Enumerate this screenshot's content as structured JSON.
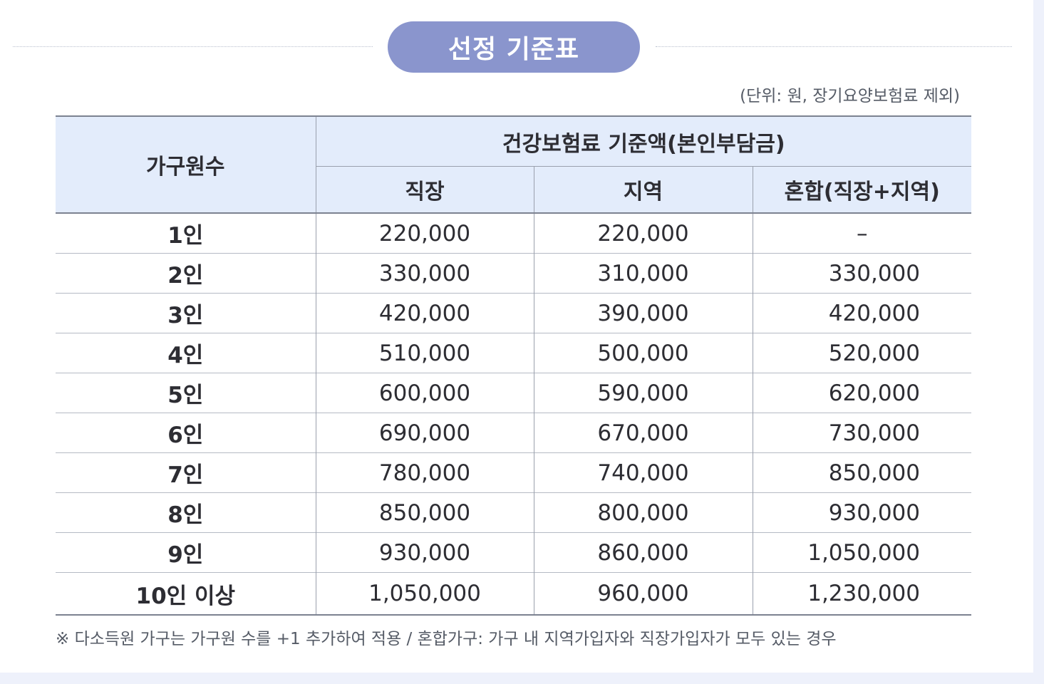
{
  "title": "선정 기준표",
  "unit_note": "(단위: 원, 장기요양보험료 제외)",
  "table": {
    "row_header": "가구원수",
    "group_header": "건강보험료 기준액(본인부담금)",
    "columns": [
      "직장",
      "지역",
      "혼합(직장+지역)"
    ],
    "rows": [
      {
        "label": "1인",
        "values": [
          "220,000",
          "220,000",
          "–"
        ]
      },
      {
        "label": "2인",
        "values": [
          "330,000",
          "310,000",
          "330,000"
        ]
      },
      {
        "label": "3인",
        "values": [
          "420,000",
          "390,000",
          "420,000"
        ]
      },
      {
        "label": "4인",
        "values": [
          "510,000",
          "500,000",
          "520,000"
        ]
      },
      {
        "label": "5인",
        "values": [
          "600,000",
          "590,000",
          "620,000"
        ]
      },
      {
        "label": "6인",
        "values": [
          "690,000",
          "670,000",
          "730,000"
        ]
      },
      {
        "label": "7인",
        "values": [
          "780,000",
          "740,000",
          "850,000"
        ]
      },
      {
        "label": "8인",
        "values": [
          "850,000",
          "800,000",
          "930,000"
        ]
      },
      {
        "label": "9인",
        "values": [
          "930,000",
          "860,000",
          "1,050,000"
        ]
      },
      {
        "label": "10인 이상",
        "values": [
          "1,050,000",
          "960,000",
          "1,230,000"
        ]
      }
    ]
  },
  "footnote": "※ 다소득원 가구는 가구원 수를 +1 추가하여 적용 / 혼합가구: 가구 내 지역가입자와 직장가입자가 모두 있는 경우",
  "colors": {
    "title_pill": "#8a95cd",
    "header_bg": "#e3ecfb",
    "page_bg": "#eef1fb"
  }
}
